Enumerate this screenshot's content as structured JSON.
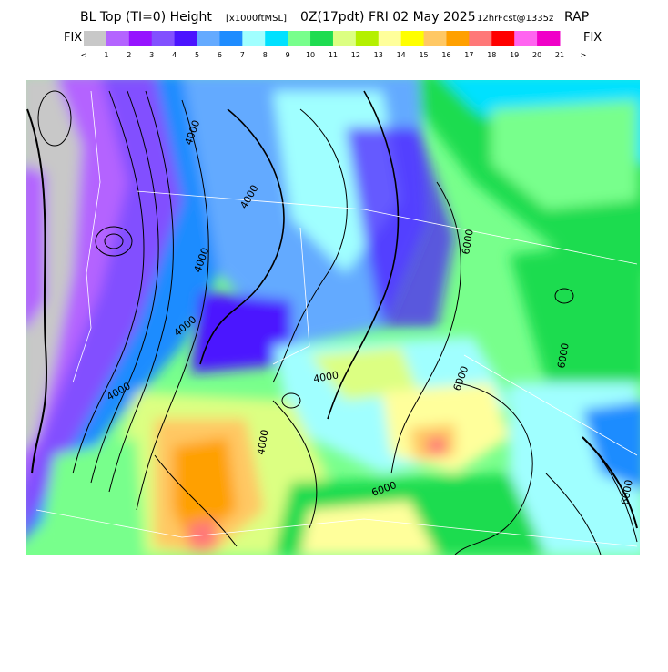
{
  "header": {
    "title_parts": [
      "BL Top (TI=0) Height",
      "[x1000ftMSL]",
      "0Z(17pdt) FRI 02 May 2025",
      "12hrFcst@1335z",
      "RAP"
    ]
  },
  "legend": {
    "end_labels": [
      "FIX",
      "FIX"
    ],
    "colors": [
      "#c8c8c8",
      "#b464ff",
      "#9614ff",
      "#8250ff",
      "#4b14ff",
      "#64aaff",
      "#1e8cff",
      "#a0ffff",
      "#00e1ff",
      "#78ff8c",
      "#1edc50",
      "#dcff82",
      "#b4f000",
      "#ffff9b",
      "#ffff00",
      "#ffc864",
      "#ffa000",
      "#ff7878",
      "#ff0000",
      "#ff64f0",
      "#f000c8"
    ],
    "tick_labels": [
      "<",
      "1",
      "2",
      "3",
      "4",
      "5",
      "6",
      "7",
      "8",
      "9",
      "10",
      "11",
      "12",
      "13",
      "14",
      "15",
      "16",
      "17",
      "18",
      "19",
      "20",
      "21",
      ">"
    ]
  },
  "map": {
    "contour_labels": [
      "4000",
      "4000",
      "4000",
      "4000",
      "4000",
      "4000",
      "6000",
      "6000",
      "6000",
      "6000",
      "4000",
      "6000"
    ]
  }
}
